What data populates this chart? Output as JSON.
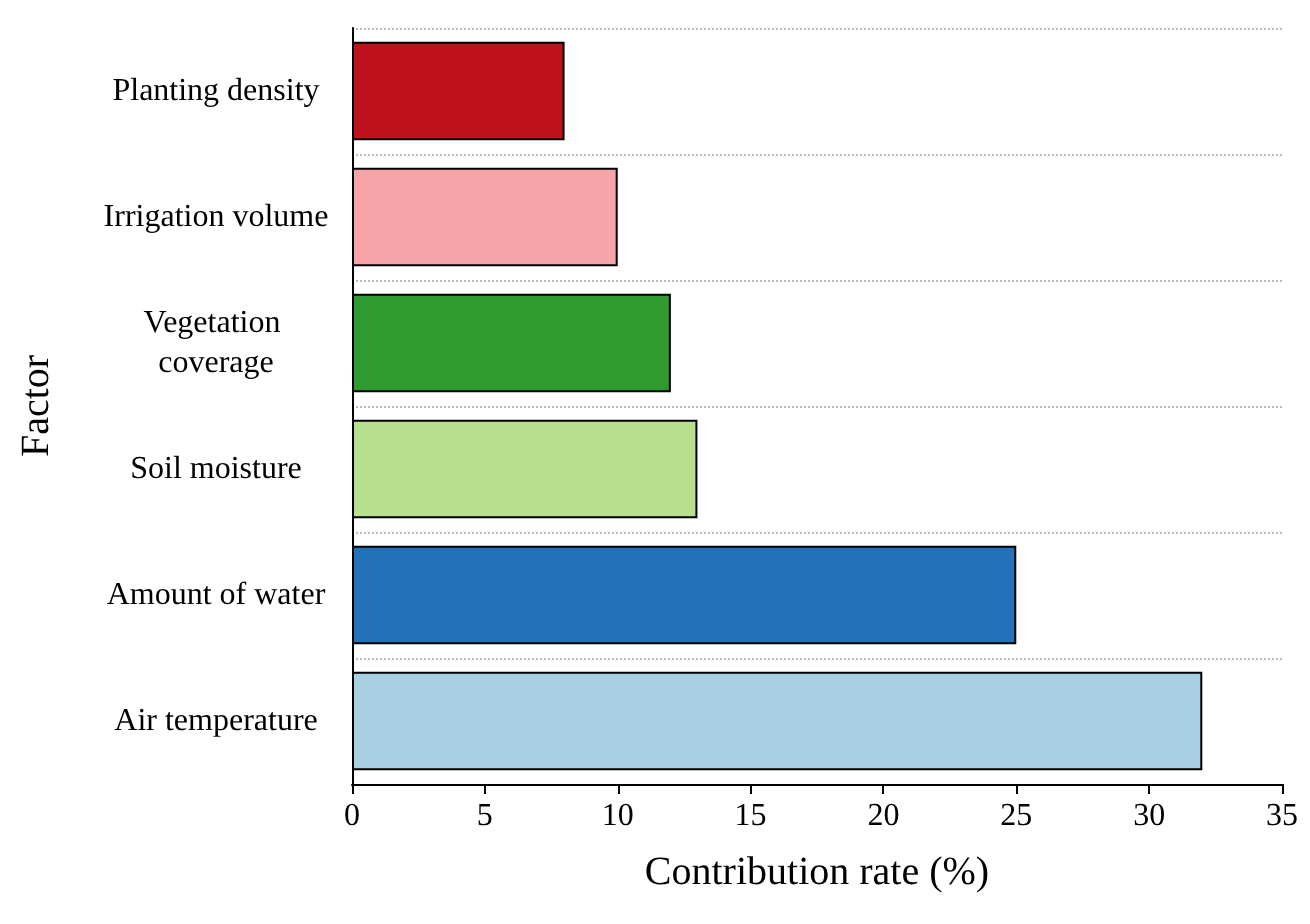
{
  "chart_data": {
    "type": "bar",
    "orientation": "horizontal",
    "xlabel": "Contribution rate (%)",
    "ylabel": "Factor",
    "categories": [
      "Planting density",
      "Irrigation volume",
      "Vegetation coverage",
      "Soil moisture",
      "Amount of water",
      "Air temperature"
    ],
    "values": [
      8,
      10,
      12,
      13,
      25,
      32
    ],
    "colors": [
      "#c0121c",
      "#f7a3a8",
      "#2f9a2f",
      "#b7e08e",
      "#2371b8",
      "#a9cfe2"
    ],
    "xlim": [
      0,
      35
    ],
    "xticks": [
      0,
      5,
      10,
      15,
      20,
      25,
      30,
      35
    ],
    "grid": "y"
  }
}
